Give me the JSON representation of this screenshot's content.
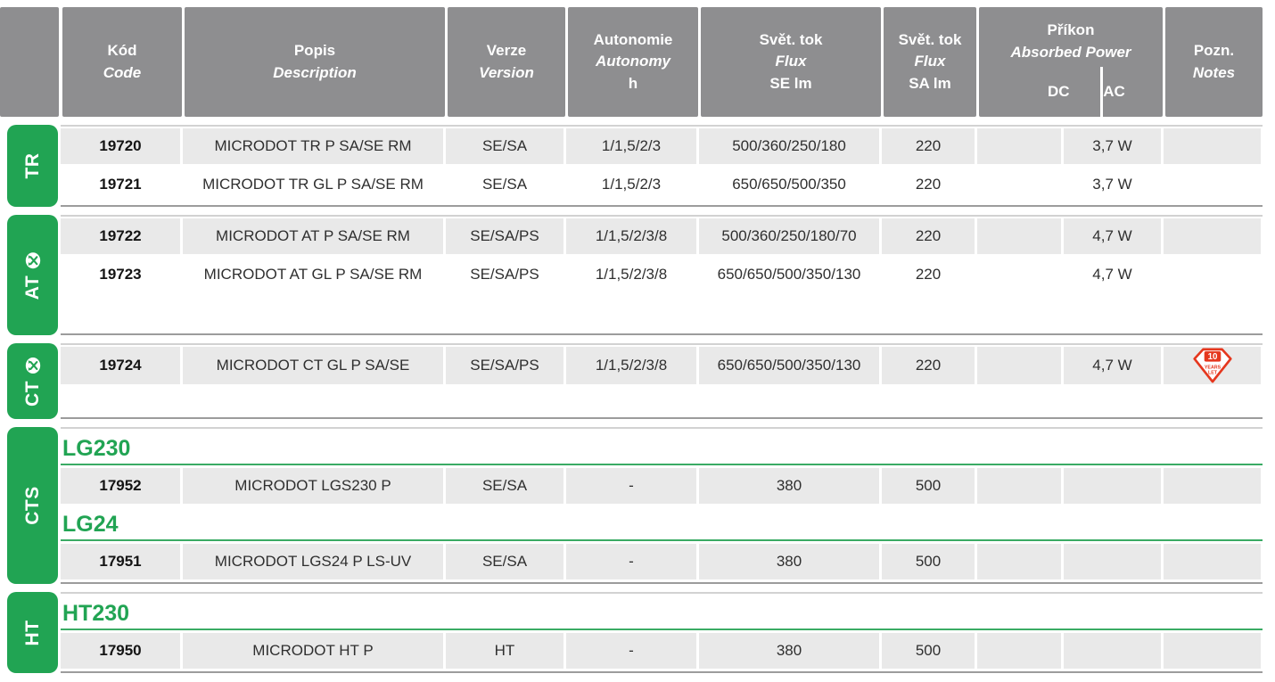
{
  "colors": {
    "accent_green": "#21a453",
    "header_gray": "#8e8e90",
    "row_gray": "#e9e9e9",
    "group_top_line": "#d2d2d2",
    "group_bottom_line": "#9c9c9c",
    "badge_red": "#e5371e"
  },
  "header": {
    "code": [
      "Kód",
      "Code"
    ],
    "description": [
      "Popis",
      "Description"
    ],
    "version": [
      "Verze",
      "Version"
    ],
    "autonomy": [
      "Autonomie",
      "Autonomy",
      "h"
    ],
    "flux_se": [
      "Svět. tok",
      "Flux",
      "SE lm"
    ],
    "flux_sa": [
      "Svět. tok",
      "Flux",
      "SA lm"
    ],
    "power": [
      "Příkon",
      "Absorbed Power"
    ],
    "power_dc": "DC",
    "power_ac": "AC",
    "notes": [
      "Pozn.",
      "Notes"
    ]
  },
  "badge": {
    "value": "10",
    "word1": "YEARS",
    "word2": "LET"
  },
  "groups": [
    {
      "tab": "TR",
      "tab_icon": false,
      "blocks": [
        {
          "type": "row",
          "shade": true,
          "cells": [
            "19720",
            "MICRODOT TR P SA/SE RM",
            "SE/SA",
            "1/1,5/2/3",
            "500/360/250/180",
            "220",
            "",
            "3,7 W",
            ""
          ]
        },
        {
          "type": "row",
          "shade": false,
          "cells": [
            "19721",
            "MICRODOT TR GL P SA/SE RM",
            "SE/SA",
            "1/1,5/2/3",
            "650/650/500/350",
            "220",
            "",
            "3,7 W",
            ""
          ]
        }
      ]
    },
    {
      "tab": "AT",
      "tab_icon": true,
      "blocks": [
        {
          "type": "row",
          "shade": true,
          "cells": [
            "19722",
            "MICRODOT AT P SA/SE RM",
            "SE/SA/PS",
            "1/1,5/2/3/8",
            "500/360/250/180/70",
            "220",
            "",
            "4,7 W",
            ""
          ]
        },
        {
          "type": "row",
          "shade": false,
          "cells": [
            "19723",
            "MICRODOT AT GL P SA/SE RM",
            "SE/SA/PS",
            "1/1,5/2/3/8",
            "650/650/500/350/130",
            "220",
            "",
            "4,7 W",
            ""
          ]
        },
        {
          "type": "spacer",
          "height": 43
        }
      ]
    },
    {
      "tab": "CT",
      "tab_icon": true,
      "blocks": [
        {
          "type": "row",
          "shade": true,
          "badge": true,
          "cells": [
            "19724",
            "MICRODOT CT GL P SA/SE",
            "SE/SA/PS",
            "1/1,5/2/3/8",
            "650/650/500/350/130",
            "220",
            "",
            "4,7 W",
            ""
          ]
        },
        {
          "type": "spacer",
          "height": 36
        }
      ]
    },
    {
      "tab": "CTS",
      "tab_icon": false,
      "blocks": [
        {
          "type": "subheader",
          "label": "LG230"
        },
        {
          "type": "row",
          "shade": true,
          "cells": [
            "17952",
            "MICRODOT LGS230 P",
            "SE/SA",
            "-",
            "380",
            "500",
            "",
            "",
            ""
          ]
        },
        {
          "type": "subheader",
          "label": "LG24"
        },
        {
          "type": "row",
          "shade": true,
          "cells": [
            "17951",
            "MICRODOT LGS24 P LS-UV",
            "SE/SA",
            "-",
            "380",
            "500",
            "",
            "",
            ""
          ]
        }
      ]
    },
    {
      "tab": "HT",
      "tab_icon": false,
      "blocks": [
        {
          "type": "subheader",
          "label": "HT230"
        },
        {
          "type": "row",
          "shade": true,
          "cells": [
            "17950",
            "MICRODOT HT P",
            "HT",
            "-",
            "380",
            "500",
            "",
            "",
            ""
          ]
        }
      ]
    }
  ],
  "columns_semantic": [
    "code",
    "description",
    "version",
    "autonomy",
    "flux-se",
    "flux-sa",
    "power-dc",
    "power-ac",
    "notes"
  ]
}
